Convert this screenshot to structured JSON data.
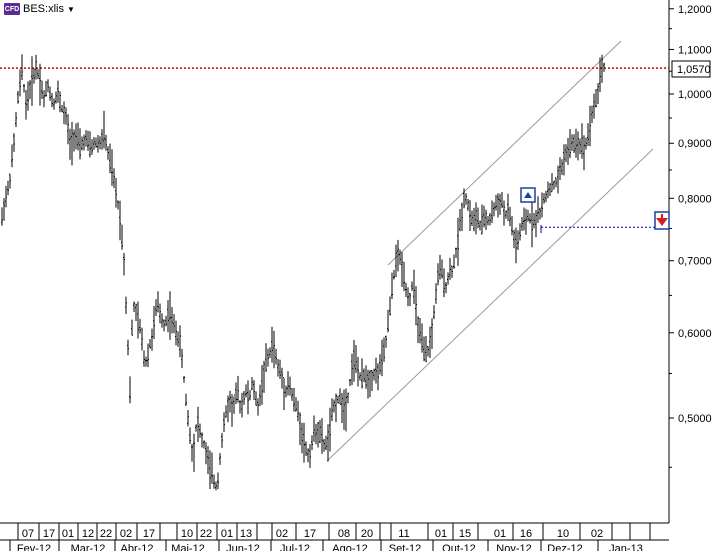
{
  "header": {
    "badge": "CFD",
    "symbol": "BES:xlis"
  },
  "colors": {
    "price": "#000000",
    "resistance": "#cc0000",
    "channel": "#9a9a9a",
    "alert_line": "#0000aa",
    "label_box": "#000000"
  },
  "chart_data": {
    "type": "bar",
    "symbol": "BES:xlis",
    "y_scale": "log",
    "ylim": [
      0.4,
      1.27
    ],
    "y_ticks": [
      "1,2000",
      "1,1000",
      "1,0000",
      "0,9000",
      "0,8000",
      "0,7000",
      "0,6000",
      "0,5000"
    ],
    "last_price_label": "1,0570",
    "last_price": 1.057,
    "resistance_level": 1.057,
    "alert_level": 0.752,
    "x_day_labels": [
      "07",
      "17",
      "01",
      "12",
      "22",
      "02",
      "17",
      "10",
      "22",
      "01",
      "13",
      "02",
      "17",
      "08",
      "20",
      "11",
      "01",
      "15",
      "01",
      "16",
      "10",
      "02"
    ],
    "x_month_labels": [
      "Fev-12",
      "Mar-12",
      "Abr-12",
      "Mai-12",
      "Jun-12",
      "Jul-12",
      "Ago-12",
      "Set-12",
      "Out-12",
      "Nov-12",
      "Dez-12",
      "Jan-13"
    ],
    "price_path": [
      [
        0,
        0.74
      ],
      [
        4,
        0.79
      ],
      [
        9,
        0.82
      ],
      [
        14,
        0.9
      ],
      [
        18,
        0.99
      ],
      [
        22,
        1.05
      ],
      [
        26,
        0.98
      ],
      [
        31,
        1.02
      ],
      [
        36,
        1.06
      ],
      [
        40,
        1.03
      ],
      [
        44,
        0.99
      ],
      [
        48,
        1.02
      ],
      [
        53,
        0.98
      ],
      [
        58,
        1.0
      ],
      [
        62,
        0.97
      ],
      [
        66,
        0.95
      ],
      [
        70,
        0.9
      ],
      [
        75,
        0.92
      ],
      [
        80,
        0.89
      ],
      [
        85,
        0.91
      ],
      [
        90,
        0.89
      ],
      [
        95,
        0.9
      ],
      [
        100,
        0.9
      ],
      [
        104,
        0.92
      ],
      [
        108,
        0.88
      ],
      [
        112,
        0.85
      ],
      [
        116,
        0.81
      ],
      [
        120,
        0.77
      ],
      [
        124,
        0.7
      ],
      [
        127,
        0.61
      ],
      [
        130,
        0.53
      ],
      [
        133,
        0.64
      ],
      [
        137,
        0.62
      ],
      [
        141,
        0.6
      ],
      [
        145,
        0.56
      ],
      [
        149,
        0.58
      ],
      [
        153,
        0.6
      ],
      [
        157,
        0.64
      ],
      [
        161,
        0.62
      ],
      [
        165,
        0.61
      ],
      [
        169,
        0.63
      ],
      [
        173,
        0.61
      ],
      [
        177,
        0.6
      ],
      [
        181,
        0.58
      ],
      [
        185,
        0.53
      ],
      [
        189,
        0.49
      ],
      [
        193,
        0.46
      ],
      [
        197,
        0.5
      ],
      [
        201,
        0.48
      ],
      [
        205,
        0.47
      ],
      [
        209,
        0.45
      ],
      [
        213,
        0.44
      ],
      [
        217,
        0.43
      ],
      [
        221,
        0.47
      ],
      [
        225,
        0.5
      ],
      [
        229,
        0.52
      ],
      [
        233,
        0.51
      ],
      [
        237,
        0.53
      ],
      [
        241,
        0.51
      ],
      [
        245,
        0.53
      ],
      [
        249,
        0.52
      ],
      [
        253,
        0.54
      ],
      [
        257,
        0.51
      ],
      [
        261,
        0.53
      ],
      [
        265,
        0.56
      ],
      [
        269,
        0.57
      ],
      [
        273,
        0.59
      ],
      [
        277,
        0.56
      ],
      [
        281,
        0.55
      ],
      [
        285,
        0.53
      ],
      [
        289,
        0.54
      ],
      [
        293,
        0.52
      ],
      [
        297,
        0.51
      ],
      [
        301,
        0.49
      ],
      [
        305,
        0.47
      ],
      [
        309,
        0.46
      ],
      [
        313,
        0.48
      ],
      [
        317,
        0.49
      ],
      [
        321,
        0.48
      ],
      [
        325,
        0.47
      ],
      [
        329,
        0.48
      ],
      [
        333,
        0.51
      ],
      [
        337,
        0.52
      ],
      [
        341,
        0.52
      ],
      [
        345,
        0.51
      ],
      [
        349,
        0.53
      ],
      [
        353,
        0.57
      ],
      [
        357,
        0.56
      ],
      [
        361,
        0.54
      ],
      [
        365,
        0.55
      ],
      [
        369,
        0.54
      ],
      [
        373,
        0.55
      ],
      [
        377,
        0.55
      ],
      [
        381,
        0.56
      ],
      [
        385,
        0.58
      ],
      [
        389,
        0.62
      ],
      [
        393,
        0.67
      ],
      [
        397,
        0.71
      ],
      [
        401,
        0.7
      ],
      [
        405,
        0.67
      ],
      [
        409,
        0.64
      ],
      [
        413,
        0.67
      ],
      [
        417,
        0.62
      ],
      [
        421,
        0.59
      ],
      [
        425,
        0.57
      ],
      [
        429,
        0.58
      ],
      [
        433,
        0.61
      ],
      [
        437,
        0.67
      ],
      [
        441,
        0.69
      ],
      [
        445,
        0.66
      ],
      [
        449,
        0.68
      ],
      [
        453,
        0.69
      ],
      [
        457,
        0.72
      ],
      [
        461,
        0.77
      ],
      [
        465,
        0.81
      ],
      [
        469,
        0.78
      ],
      [
        473,
        0.76
      ],
      [
        477,
        0.77
      ],
      [
        481,
        0.75
      ],
      [
        485,
        0.77
      ],
      [
        489,
        0.76
      ],
      [
        493,
        0.78
      ],
      [
        497,
        0.79
      ],
      [
        501,
        0.8
      ],
      [
        505,
        0.77
      ],
      [
        509,
        0.78
      ],
      [
        513,
        0.74
      ],
      [
        517,
        0.72
      ],
      [
        521,
        0.75
      ],
      [
        525,
        0.76
      ],
      [
        529,
        0.77
      ],
      [
        533,
        0.76
      ],
      [
        537,
        0.77
      ],
      [
        541,
        0.78
      ],
      [
        545,
        0.8
      ],
      [
        549,
        0.82
      ],
      [
        553,
        0.82
      ],
      [
        557,
        0.83
      ],
      [
        561,
        0.85
      ],
      [
        565,
        0.88
      ],
      [
        569,
        0.89
      ],
      [
        573,
        0.9
      ],
      [
        577,
        0.9
      ],
      [
        581,
        0.9
      ],
      [
        585,
        0.89
      ],
      [
        589,
        0.93
      ],
      [
        593,
        0.97
      ],
      [
        597,
        0.99
      ],
      [
        601,
        1.06
      ]
    ]
  }
}
